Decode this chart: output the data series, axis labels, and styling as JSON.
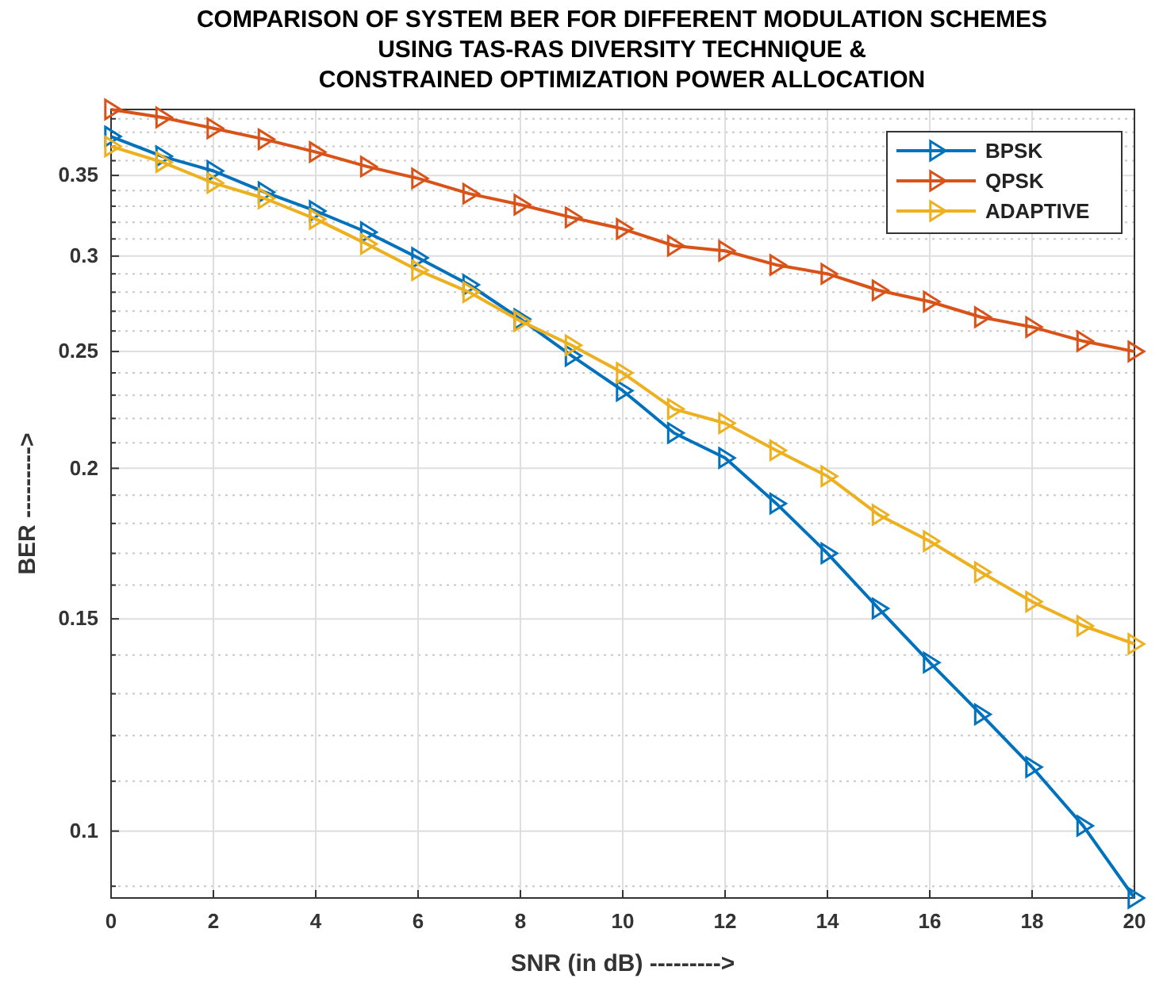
{
  "chart_data": {
    "type": "line",
    "title": "COMPARISON OF SYSTEM BER FOR DIFFERENT MODULATION SCHEMES\nUSING TAS-RAS DIVERSITY TECHNIQUE &\nCONSTRAINED OPTIMIZATION POWER ALLOCATION",
    "xlabel": "SNR (in dB) --------->",
    "ylabel": "BER --------->",
    "x": [
      0,
      1,
      2,
      3,
      4,
      5,
      6,
      7,
      8,
      9,
      10,
      11,
      12,
      13,
      14,
      15,
      16,
      17,
      18,
      19,
      20
    ],
    "series": [
      {
        "name": "BPSK",
        "color": "#0072bd",
        "values": [
          0.377,
          0.363,
          0.353,
          0.339,
          0.327,
          0.314,
          0.299,
          0.284,
          0.266,
          0.248,
          0.232,
          0.214,
          0.204,
          0.187,
          0.17,
          0.153,
          0.138,
          0.125,
          0.113,
          0.101,
          0.088
        ]
      },
      {
        "name": "QPSK",
        "color": "#d95319",
        "values": [
          0.397,
          0.391,
          0.383,
          0.375,
          0.366,
          0.356,
          0.348,
          0.338,
          0.331,
          0.323,
          0.316,
          0.306,
          0.303,
          0.295,
          0.29,
          0.281,
          0.275,
          0.267,
          0.262,
          0.255,
          0.25
        ]
      },
      {
        "name": "ADAPTIVE",
        "color": "#edb120",
        "values": [
          0.37,
          0.359,
          0.345,
          0.335,
          0.322,
          0.307,
          0.292,
          0.28,
          0.265,
          0.253,
          0.24,
          0.224,
          0.218,
          0.207,
          0.197,
          0.183,
          0.174,
          0.164,
          0.155,
          0.148,
          0.143
        ]
      }
    ],
    "xlim": [
      0,
      20
    ],
    "xticks": [
      0,
      2,
      4,
      6,
      8,
      10,
      12,
      14,
      16,
      18,
      20
    ],
    "ylim": [
      0.088,
      0.397
    ],
    "yticks": [
      {
        "value": 0.09,
        "label": null
      },
      0.1,
      {
        "value": 0.11,
        "label": null
      },
      {
        "value": 0.12,
        "label": null
      },
      {
        "value": 0.13,
        "label": null
      },
      {
        "value": 0.14,
        "label": null
      },
      0.15,
      {
        "value": 0.16,
        "label": null
      },
      {
        "value": 0.17,
        "label": null
      },
      {
        "value": 0.18,
        "label": null
      },
      {
        "value": 0.19,
        "label": null
      },
      0.2,
      {
        "value": 0.21,
        "label": null
      },
      {
        "value": 0.22,
        "label": null
      },
      {
        "value": 0.23,
        "label": null
      },
      {
        "value": 0.24,
        "label": null
      },
      0.25,
      {
        "value": 0.26,
        "label": null
      },
      {
        "value": 0.27,
        "label": null
      },
      {
        "value": 0.28,
        "label": null
      },
      {
        "value": 0.29,
        "label": null
      },
      0.3,
      {
        "value": 0.31,
        "label": null
      },
      {
        "value": 0.32,
        "label": null
      },
      {
        "value": 0.33,
        "label": null
      },
      {
        "value": 0.34,
        "label": null
      },
      0.35,
      {
        "value": 0.36,
        "label": null
      },
      {
        "value": 0.37,
        "label": null
      },
      {
        "value": 0.38,
        "label": null
      },
      {
        "value": 0.39,
        "label": null
      }
    ],
    "log": "y",
    "grid": true,
    "legend": "top right",
    "marker": "triangle",
    "line_style": "solid"
  }
}
